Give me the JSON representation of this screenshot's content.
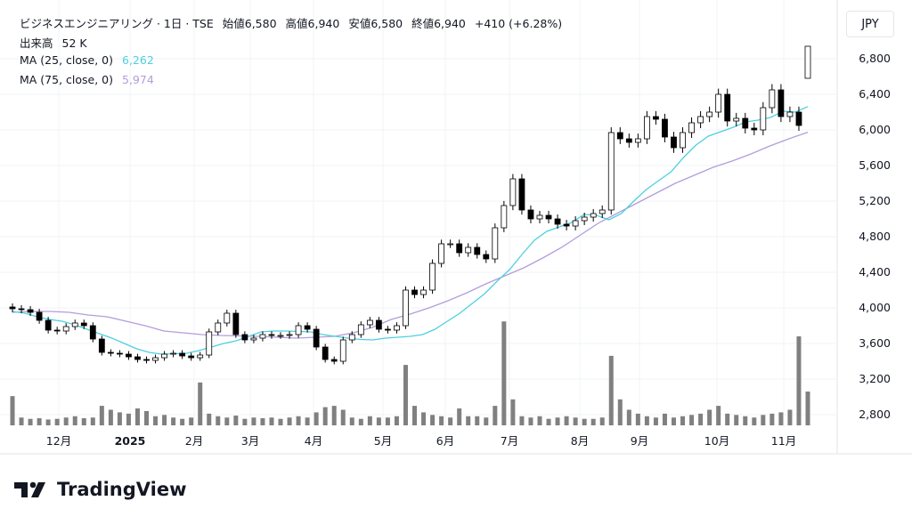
{
  "header": {
    "symbol": "ビジネスエンジニアリング · 1日 · TSE",
    "open": "始値6,580",
    "high": "高値6,940",
    "low": "安値6,580",
    "close": "終値6,940",
    "change": "+410 (+6.28%)",
    "volume_label": "出来高",
    "volume_value": "52 K",
    "ma25_label": "MA (25, close, 0)",
    "ma25_value": "6,262",
    "ma75_label": "MA (75, close, 0)",
    "ma75_value": "5,974"
  },
  "currency_button": "JPY",
  "brand": "TradingView",
  "colors": {
    "ma25": "#4dd0e1",
    "ma75": "#b39ddb",
    "volume": "#808080",
    "up_body": "#ffffff",
    "down_body": "#000000"
  },
  "chart_data": {
    "type": "candlestick",
    "ylim": [
      2600,
      7000
    ],
    "y_ticks": [
      "2,800",
      "3,200",
      "3,600",
      "4,000",
      "4,400",
      "4,800",
      "5,200",
      "5,600",
      "6,000",
      "6,400",
      "6,800"
    ],
    "y_tick_values": [
      2800,
      3200,
      3600,
      4000,
      4400,
      4800,
      5200,
      5600,
      6000,
      6400,
      6800
    ],
    "x_ticks": [
      "12月",
      "2025",
      "2月",
      "3月",
      "4月",
      "5月",
      "6月",
      "7月",
      "8月",
      "9月",
      "10月",
      "11月"
    ],
    "closes": [
      3990,
      3980,
      3950,
      3860,
      3750,
      3740,
      3790,
      3830,
      3800,
      3650,
      3500,
      3490,
      3480,
      3450,
      3420,
      3410,
      3440,
      3480,
      3490,
      3460,
      3440,
      3470,
      3730,
      3830,
      3940,
      3700,
      3640,
      3660,
      3700,
      3690,
      3690,
      3700,
      3800,
      3760,
      3560,
      3420,
      3400,
      3640,
      3700,
      3810,
      3860,
      3760,
      3750,
      3800,
      4200,
      4150,
      4200,
      4500,
      4720,
      4720,
      4620,
      4680,
      4600,
      4550,
      4900,
      5150,
      5450,
      5100,
      5000,
      5040,
      5000,
      4940,
      4920,
      4980,
      5020,
      5060,
      5100,
      5970,
      5900,
      5860,
      5900,
      6150,
      6120,
      5920,
      5800,
      5970,
      6080,
      6150,
      6200,
      6400,
      6100,
      6130,
      6020,
      6000,
      6250,
      6450,
      6150,
      6200,
      6050,
      6940
    ],
    "last_candle": {
      "open": 6580,
      "high": 6940,
      "low": 6580,
      "close": 6940
    },
    "volumes_k": [
      45,
      12,
      10,
      11,
      9,
      10,
      12,
      14,
      11,
      12,
      30,
      24,
      20,
      18,
      26,
      22,
      14,
      16,
      12,
      10,
      12,
      66,
      18,
      14,
      12,
      15,
      10,
      12,
      11,
      12,
      10,
      12,
      14,
      12,
      20,
      28,
      30,
      24,
      12,
      10,
      14,
      12,
      12,
      14,
      93,
      30,
      20,
      16,
      14,
      12,
      26,
      14,
      14,
      12,
      30,
      160,
      40,
      14,
      12,
      14,
      10,
      12,
      14,
      12,
      10,
      10,
      12,
      107,
      40,
      24,
      18,
      14,
      12,
      18,
      12,
      14,
      16,
      18,
      24,
      30,
      18,
      16,
      14,
      12,
      16,
      18,
      20,
      24,
      137,
      52
    ],
    "ma25": [
      3960,
      3940,
      3900,
      3870,
      3850,
      3810,
      3760,
      3710,
      3660,
      3600,
      3540,
      3500,
      3480,
      3485,
      3490,
      3520,
      3560,
      3600,
      3630,
      3680,
      3730,
      3740,
      3740,
      3735,
      3730,
      3700,
      3680,
      3660,
      3645,
      3640,
      3660,
      3670,
      3680,
      3700,
      3760,
      3850,
      3940,
      4050,
      4160,
      4300,
      4430,
      4600,
      4760,
      4860,
      4910,
      4960,
      5050,
      5040,
      4990,
      5060,
      5200,
      5330,
      5430,
      5530,
      5690,
      5830,
      5930,
      5980,
      6030,
      6090,
      6110,
      6140,
      6210,
      6200,
      6262
    ],
    "ma75": [
      3950,
      3960,
      3960,
      3950,
      3920,
      3900,
      3850,
      3800,
      3740,
      3720,
      3700,
      3690,
      3685,
      3680,
      3670,
      3660,
      3670,
      3680,
      3720,
      3780,
      3870,
      3930,
      4000,
      4080,
      4170,
      4270,
      4360,
      4450,
      4560,
      4680,
      4820,
      4960,
      5070,
      5180,
      5290,
      5400,
      5490,
      5580,
      5650,
      5730,
      5820,
      5900,
      5974
    ]
  }
}
